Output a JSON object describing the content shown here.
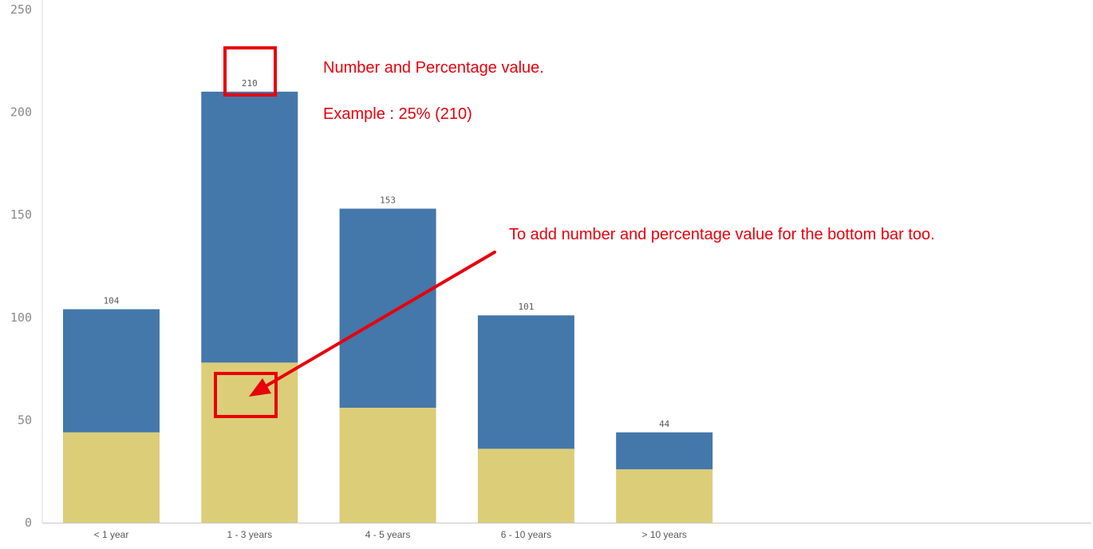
{
  "chart_data": {
    "type": "bar",
    "stacked": true,
    "categories": [
      "< 1 year",
      "1 - 3 years",
      "4 - 5 years",
      "6 - 10 years",
      "> 10 years"
    ],
    "series": [
      {
        "color": "#dccd79",
        "values": [
          44,
          78,
          56,
          36,
          26
        ]
      },
      {
        "color": "#4477aa",
        "values": [
          60,
          132,
          97,
          65,
          18
        ]
      }
    ],
    "totals": [
      104,
      210,
      153,
      101,
      44
    ],
    "total_labels": [
      "104",
      "210",
      "153",
      "101",
      "44"
    ],
    "yticks": [
      0,
      50,
      100,
      150,
      200,
      250
    ],
    "ytick_labels": [
      "0",
      "50",
      "100",
      "150",
      "200",
      "250"
    ],
    "ylim": [
      0,
      250
    ],
    "title": "",
    "xlabel": "",
    "ylabel": "",
    "grid": false,
    "legend": "none"
  },
  "annotations": {
    "note_top_line1": "Number and Percentage value.",
    "note_top_line2": "Example : 25% (210)",
    "note_bottom": "To add number and percentage value for the bottom bar too.",
    "color": "#e8000b"
  }
}
